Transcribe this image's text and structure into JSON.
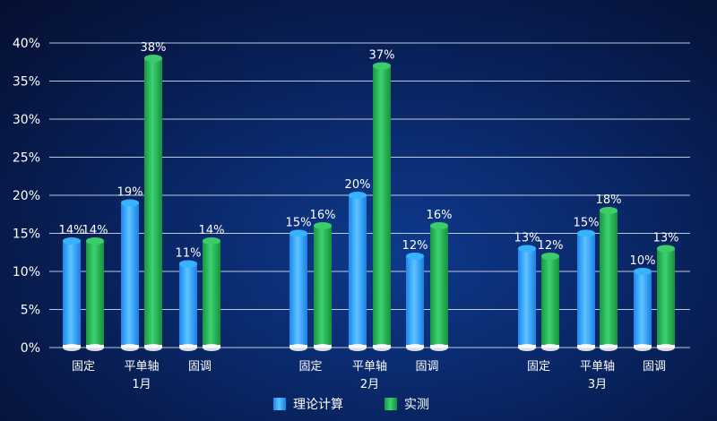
{
  "chart_data": {
    "type": "bar",
    "groups": [
      {
        "label": "1月",
        "categories": [
          "固定",
          "平单轴",
          "固调"
        ]
      },
      {
        "label": "2月",
        "categories": [
          "固定",
          "平单轴",
          "固调"
        ]
      },
      {
        "label": "3月",
        "categories": [
          "固定",
          "平单轴",
          "固调"
        ]
      }
    ],
    "series": [
      {
        "name": "理论计算",
        "color": "#2ea8ff",
        "values": [
          14,
          19,
          11,
          15,
          20,
          12,
          13,
          15,
          10
        ]
      },
      {
        "name": "实测",
        "color": "#22b455",
        "values": [
          14,
          38,
          14,
          16,
          37,
          16,
          12,
          18,
          13
        ]
      }
    ],
    "value_suffix": "%",
    "ylim": [
      0,
      40
    ],
    "yticks": [
      "0%",
      "5%",
      "10%",
      "15%",
      "20%",
      "25%",
      "30%",
      "35%",
      "40%"
    ],
    "grid": true,
    "legend_position": "bottom"
  }
}
